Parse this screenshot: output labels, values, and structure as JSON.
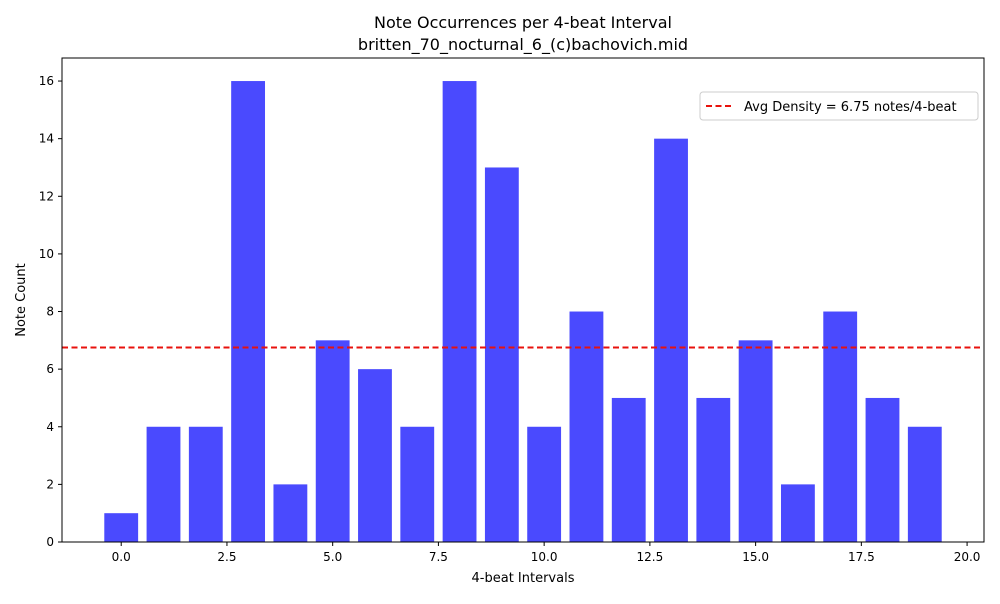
{
  "chart_data": {
    "type": "bar",
    "title": "Note Occurrences per 4-beat Interval",
    "subtitle": "britten_70_nocturnal_6_(c)bachovich.mid",
    "xlabel": "4-beat Intervals",
    "ylabel": "Note Count",
    "x": [
      0,
      1,
      2,
      3,
      4,
      5,
      6,
      7,
      8,
      9,
      10,
      11,
      12,
      13,
      14,
      15,
      16,
      17,
      18,
      19
    ],
    "values": [
      1,
      4,
      4,
      16,
      2,
      7,
      6,
      4,
      16,
      13,
      4,
      8,
      5,
      14,
      5,
      7,
      2,
      8,
      5,
      4
    ],
    "bar_color": "#4a4afe",
    "average": {
      "value": 6.75,
      "label": "Avg Density = 6.75 notes/4-beat",
      "color": "#e8120c",
      "style": "dashed"
    },
    "xlim": [
      -1.4,
      20.4
    ],
    "ylim": [
      0,
      16.8
    ],
    "xticks": [
      "0.0",
      "2.5",
      "5.0",
      "7.5",
      "10.0",
      "12.5",
      "15.0",
      "17.5",
      "20.0"
    ],
    "yticks": [
      "0",
      "2",
      "4",
      "6",
      "8",
      "10",
      "12",
      "14",
      "16"
    ],
    "legend_position": "top-right",
    "grid": false
  }
}
